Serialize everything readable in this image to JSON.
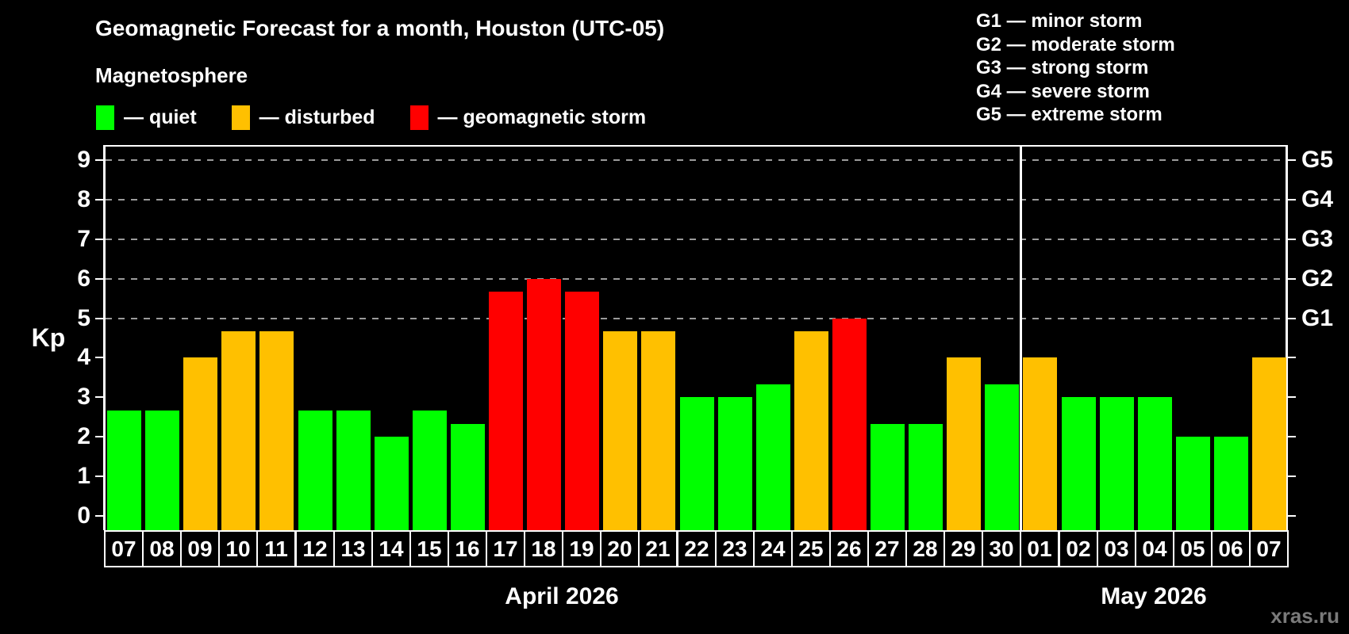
{
  "title": "Geomagnetic Forecast for a month, Houston (UTC-05)",
  "subtitle": "Magnetosphere",
  "legend": {
    "items": [
      {
        "key": "quiet",
        "label": "— quiet",
        "color": "#00ff00"
      },
      {
        "key": "disturbed",
        "label": "— disturbed",
        "color": "#ffc000"
      },
      {
        "key": "storm",
        "label": "— geomagnetic storm",
        "color": "#ff0000"
      }
    ]
  },
  "g_scale_legend": [
    "G1 — minor storm",
    "G2 — moderate storm",
    "G3 — strong storm",
    "G4 — severe storm",
    "G5 — extreme storm"
  ],
  "watermark": "xras.ru",
  "chart_data": {
    "type": "bar",
    "title": "Geomagnetic Forecast for a month, Houston (UTC-05)",
    "ylabel": "Kp",
    "xlabel": "",
    "ylim": [
      -0.4,
      9.4
    ],
    "yticks": [
      0,
      1,
      2,
      3,
      4,
      5,
      6,
      7,
      8,
      9
    ],
    "grid": "dashed horizontal lines at Kp 5,6,7,8,9 only",
    "legend_position": "top",
    "right_axis_labels": [
      {
        "kp": 9,
        "label": "G5"
      },
      {
        "kp": 8,
        "label": "G4"
      },
      {
        "kp": 7,
        "label": "G3"
      },
      {
        "kp": 6,
        "label": "G2"
      },
      {
        "kp": 5,
        "label": "G1"
      }
    ],
    "months": [
      {
        "label": "April 2026",
        "days": 24
      },
      {
        "label": "May 2026",
        "days": 7
      }
    ],
    "categories": [
      "07",
      "08",
      "09",
      "10",
      "11",
      "12",
      "13",
      "14",
      "15",
      "16",
      "17",
      "18",
      "19",
      "20",
      "21",
      "22",
      "23",
      "24",
      "25",
      "26",
      "27",
      "28",
      "29",
      "30",
      "01",
      "02",
      "03",
      "04",
      "05",
      "06",
      "07"
    ],
    "values": [
      2.67,
      2.67,
      4.0,
      4.67,
      4.67,
      2.67,
      2.67,
      2.0,
      2.67,
      2.33,
      5.67,
      6.0,
      5.67,
      4.67,
      4.67,
      3.0,
      3.0,
      3.33,
      4.67,
      5.0,
      2.33,
      2.33,
      4.0,
      3.33,
      4.0,
      3.0,
      3.0,
      3.0,
      2.0,
      2.0,
      4.0
    ],
    "status": [
      "quiet",
      "quiet",
      "disturbed",
      "disturbed",
      "disturbed",
      "quiet",
      "quiet",
      "quiet",
      "quiet",
      "quiet",
      "storm",
      "storm",
      "storm",
      "disturbed",
      "disturbed",
      "quiet",
      "quiet",
      "quiet",
      "disturbed",
      "storm",
      "quiet",
      "quiet",
      "disturbed",
      "quiet",
      "disturbed",
      "quiet",
      "quiet",
      "quiet",
      "quiet",
      "quiet",
      "disturbed"
    ],
    "colors": {
      "quiet": "#00ff00",
      "disturbed": "#ffc000",
      "storm": "#ff0000"
    }
  }
}
